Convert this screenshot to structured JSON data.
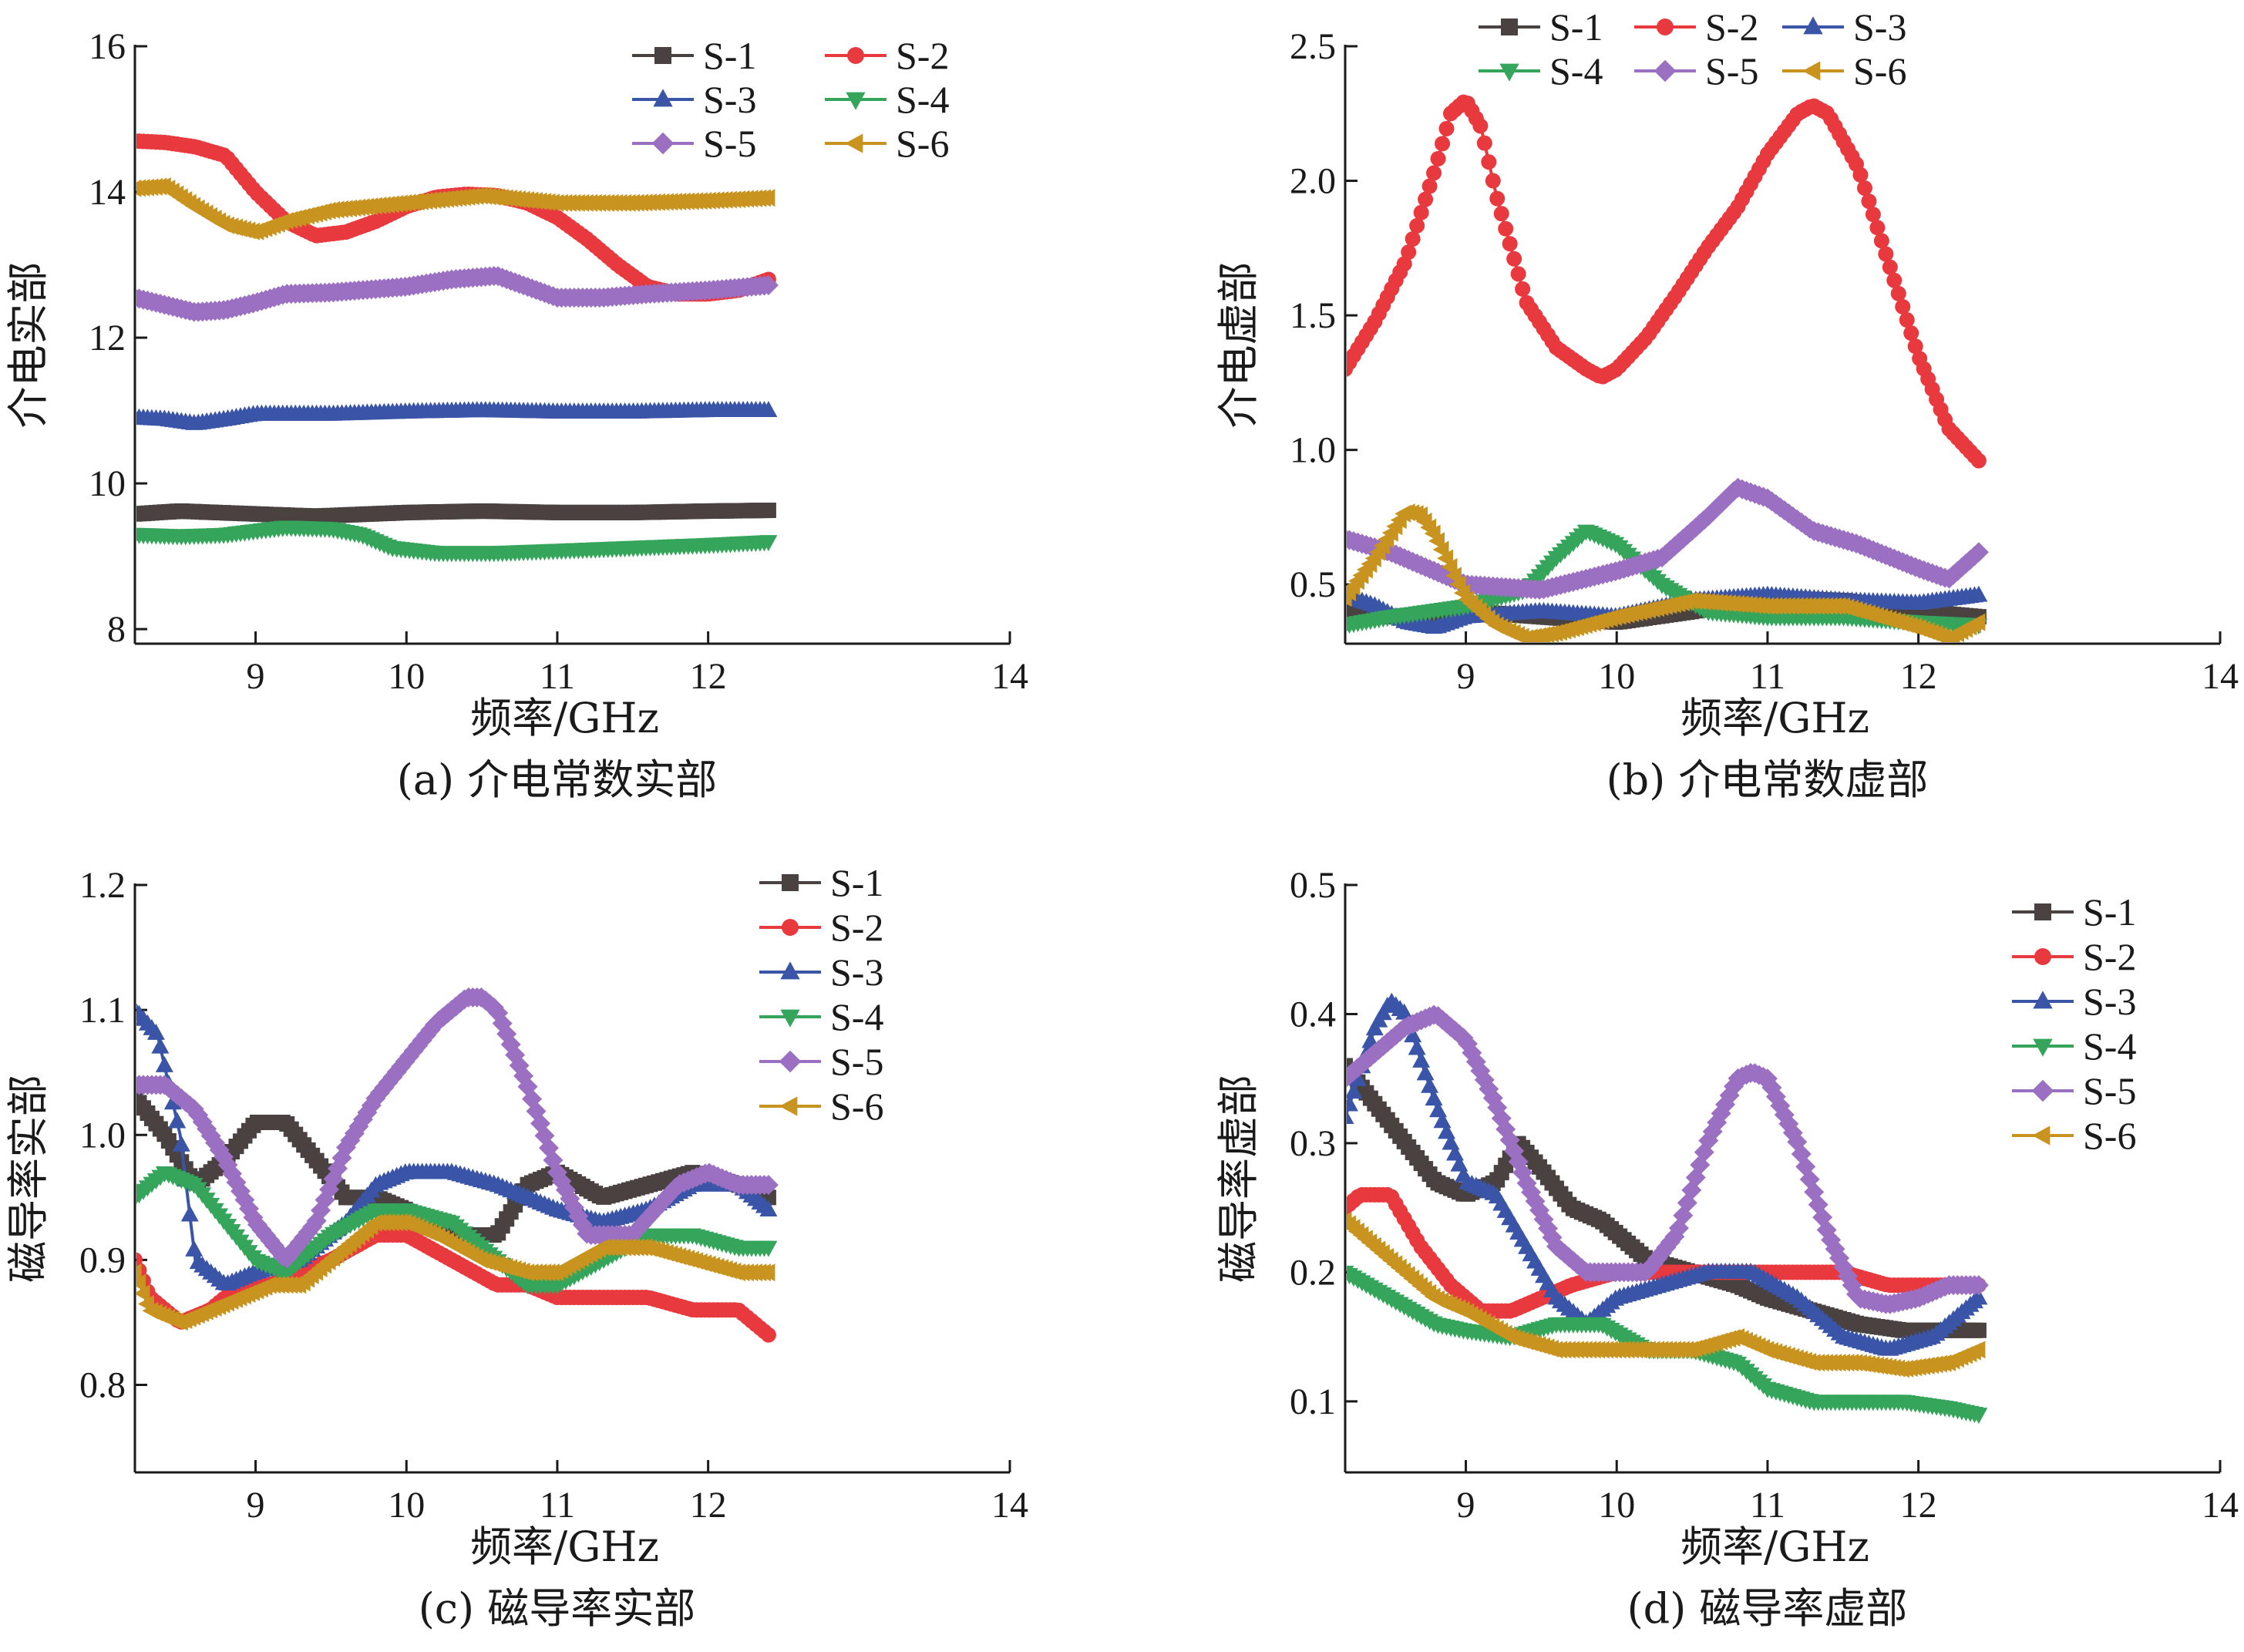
{
  "colors": {
    "S-1": "#4a4141",
    "S-2": "#e8393f",
    "S-3": "#3a55a8",
    "S-4": "#34a55a",
    "S-5": "#9b6fc2",
    "S-6": "#c8941f"
  },
  "markers": {
    "S-1": "square",
    "S-2": "circle",
    "S-3": "triangle-up",
    "S-4": "triangle-down",
    "S-5": "diamond",
    "S-6": "triangle-left"
  },
  "chart_data": [
    {
      "type": "line",
      "caption": "(a) 介电常数实部",
      "xlabel": "频率/GHz",
      "ylabel": "介电实部",
      "xlim": [
        8.2,
        14
      ],
      "ylim": [
        7.8,
        16
      ],
      "xticks": [
        9,
        10,
        11,
        12,
        14
      ],
      "yticks": [
        8,
        10,
        12,
        14,
        16
      ],
      "ytick_labels": [
        "8",
        "10",
        "12",
        "14",
        "16"
      ],
      "legend": {
        "placement": "top-right",
        "columns": 2
      },
      "series": [
        {
          "name": "S-1",
          "x": [
            8.2,
            8.5,
            9.0,
            9.4,
            10.0,
            10.5,
            11.0,
            11.5,
            12.0,
            12.4
          ],
          "y": [
            9.58,
            9.62,
            9.58,
            9.55,
            9.6,
            9.62,
            9.6,
            9.6,
            9.62,
            9.63
          ]
        },
        {
          "name": "S-2",
          "x": [
            8.2,
            8.4,
            8.6,
            8.8,
            9.0,
            9.2,
            9.4,
            9.6,
            9.8,
            10.0,
            10.2,
            10.4,
            10.6,
            10.8,
            11.0,
            11.2,
            11.4,
            11.6,
            11.8,
            12.0,
            12.2,
            12.4
          ],
          "y": [
            14.7,
            14.68,
            14.62,
            14.5,
            14.0,
            13.6,
            13.4,
            13.45,
            13.6,
            13.8,
            13.93,
            13.97,
            13.95,
            13.85,
            13.65,
            13.35,
            13.0,
            12.7,
            12.6,
            12.6,
            12.65,
            12.8
          ]
        },
        {
          "name": "S-3",
          "x": [
            8.2,
            8.4,
            8.6,
            8.8,
            9.0,
            9.5,
            10.0,
            10.5,
            11.0,
            11.5,
            12.0,
            12.4
          ],
          "y": [
            10.9,
            10.88,
            10.82,
            10.88,
            10.95,
            10.95,
            10.98,
            11.0,
            10.98,
            10.98,
            11.0,
            11.0
          ]
        },
        {
          "name": "S-4",
          "x": [
            8.2,
            8.5,
            8.8,
            9.0,
            9.2,
            9.5,
            9.7,
            9.9,
            10.2,
            10.6,
            11.0,
            11.5,
            12.0,
            12.4
          ],
          "y": [
            9.3,
            9.28,
            9.3,
            9.35,
            9.4,
            9.38,
            9.3,
            9.12,
            9.05,
            9.05,
            9.08,
            9.12,
            9.16,
            9.2
          ]
        },
        {
          "name": "S-5",
          "x": [
            8.2,
            8.4,
            8.6,
            8.8,
            9.0,
            9.2,
            9.5,
            10.0,
            10.3,
            10.6,
            10.8,
            11.0,
            11.3,
            11.6,
            12.0,
            12.4
          ],
          "y": [
            12.55,
            12.45,
            12.35,
            12.38,
            12.48,
            12.6,
            12.62,
            12.7,
            12.8,
            12.85,
            12.7,
            12.55,
            12.55,
            12.6,
            12.65,
            12.72
          ]
        },
        {
          "name": "S-6",
          "x": [
            8.2,
            8.4,
            8.6,
            8.8,
            9.0,
            9.2,
            9.5,
            10.0,
            10.5,
            11.0,
            11.5,
            12.0,
            12.4
          ],
          "y": [
            14.05,
            14.08,
            13.8,
            13.55,
            13.45,
            13.6,
            13.75,
            13.85,
            13.95,
            13.85,
            13.85,
            13.88,
            13.92
          ]
        }
      ]
    },
    {
      "type": "line",
      "caption": "(b) 介电常数虚部",
      "xlabel": "频率/GHz",
      "ylabel": "介电虚部",
      "xlim": [
        8.2,
        14
      ],
      "ylim": [
        0.28,
        2.5
      ],
      "xticks": [
        9,
        10,
        11,
        12,
        14
      ],
      "yticks": [
        0.5,
        1.0,
        1.5,
        2.0,
        2.5
      ],
      "ytick_labels": [
        "0.5",
        "1.0",
        "1.5",
        "2.0",
        "2.5"
      ],
      "legend": {
        "placement": "top",
        "columns": 3
      },
      "series": [
        {
          "name": "S-1",
          "x": [
            8.2,
            8.5,
            9.0,
            9.5,
            10.0,
            10.5,
            11.0,
            11.5,
            12.0,
            12.4
          ],
          "y": [
            0.4,
            0.38,
            0.4,
            0.38,
            0.36,
            0.4,
            0.45,
            0.44,
            0.4,
            0.38
          ]
        },
        {
          "name": "S-2",
          "x": [
            8.2,
            8.4,
            8.6,
            8.8,
            8.9,
            9.0,
            9.1,
            9.2,
            9.4,
            9.6,
            9.8,
            9.9,
            10.0,
            10.2,
            10.4,
            10.6,
            10.8,
            11.0,
            11.2,
            11.3,
            11.4,
            11.6,
            11.8,
            12.0,
            12.2,
            12.4
          ],
          "y": [
            1.3,
            1.48,
            1.7,
            2.05,
            2.25,
            2.3,
            2.2,
            1.95,
            1.55,
            1.38,
            1.3,
            1.27,
            1.3,
            1.42,
            1.58,
            1.75,
            1.9,
            2.1,
            2.25,
            2.28,
            2.25,
            2.05,
            1.7,
            1.35,
            1.08,
            0.96
          ]
        },
        {
          "name": "S-3",
          "x": [
            8.2,
            8.4,
            8.6,
            8.8,
            9.0,
            9.5,
            10.0,
            10.5,
            11.0,
            11.5,
            12.0,
            12.4
          ],
          "y": [
            0.46,
            0.42,
            0.36,
            0.34,
            0.38,
            0.4,
            0.38,
            0.44,
            0.46,
            0.44,
            0.43,
            0.46
          ]
        },
        {
          "name": "S-4",
          "x": [
            8.2,
            8.5,
            9.0,
            9.4,
            9.6,
            9.8,
            10.0,
            10.3,
            10.6,
            11.0,
            11.5,
            12.0,
            12.4
          ],
          "y": [
            0.35,
            0.38,
            0.42,
            0.48,
            0.6,
            0.7,
            0.65,
            0.5,
            0.4,
            0.38,
            0.38,
            0.36,
            0.35
          ]
        },
        {
          "name": "S-5",
          "x": [
            8.2,
            8.5,
            9.0,
            9.5,
            10.0,
            10.3,
            10.6,
            10.8,
            11.0,
            11.3,
            11.6,
            12.0,
            12.2,
            12.4
          ],
          "y": [
            0.67,
            0.62,
            0.5,
            0.48,
            0.55,
            0.6,
            0.75,
            0.86,
            0.82,
            0.7,
            0.65,
            0.56,
            0.52,
            0.62
          ]
        },
        {
          "name": "S-6",
          "x": [
            8.2,
            8.4,
            8.6,
            8.7,
            8.8,
            9.0,
            9.2,
            9.4,
            9.6,
            10.0,
            10.5,
            11.0,
            11.5,
            12.0,
            12.2,
            12.4
          ],
          "y": [
            0.45,
            0.6,
            0.77,
            0.76,
            0.68,
            0.45,
            0.35,
            0.3,
            0.32,
            0.38,
            0.44,
            0.42,
            0.42,
            0.34,
            0.3,
            0.36
          ]
        }
      ]
    },
    {
      "type": "line",
      "caption": "(c) 磁导率实部",
      "xlabel": "频率/GHz",
      "ylabel": "磁导率实部",
      "xlim": [
        8.2,
        14
      ],
      "ylim": [
        0.73,
        1.2
      ],
      "xticks": [
        9,
        10,
        11,
        12,
        14
      ],
      "yticks": [
        0.8,
        0.9,
        1.0,
        1.1,
        1.2
      ],
      "ytick_labels": [
        "0.8",
        "0.9",
        "1.0",
        "1.1",
        "1.2"
      ],
      "legend": {
        "placement": "top-right",
        "columns": 1
      },
      "series": [
        {
          "name": "S-1",
          "x": [
            8.2,
            8.4,
            8.6,
            8.8,
            9.0,
            9.2,
            9.4,
            9.6,
            9.8,
            10.0,
            10.3,
            10.6,
            10.8,
            11.0,
            11.3,
            11.6,
            11.9,
            12.2,
            12.4
          ],
          "y": [
            1.03,
            1.0,
            0.96,
            0.98,
            1.01,
            1.01,
            0.98,
            0.95,
            0.95,
            0.94,
            0.92,
            0.92,
            0.96,
            0.97,
            0.95,
            0.96,
            0.97,
            0.96,
            0.95
          ]
        },
        {
          "name": "S-2",
          "x": [
            8.2,
            8.3,
            8.5,
            8.7,
            8.9,
            9.1,
            9.3,
            9.5,
            9.8,
            10.0,
            10.3,
            10.6,
            10.8,
            11.0,
            11.3,
            11.6,
            11.9,
            12.2,
            12.4
          ],
          "y": [
            0.9,
            0.87,
            0.85,
            0.86,
            0.88,
            0.88,
            0.89,
            0.9,
            0.92,
            0.92,
            0.9,
            0.88,
            0.88,
            0.87,
            0.87,
            0.87,
            0.86,
            0.86,
            0.84
          ]
        },
        {
          "name": "S-3",
          "x": [
            8.2,
            8.35,
            8.5,
            8.6,
            8.8,
            9.0,
            9.3,
            9.6,
            9.8,
            10.0,
            10.3,
            10.6,
            10.8,
            11.0,
            11.3,
            11.6,
            11.9,
            12.2,
            12.4
          ],
          "y": [
            1.1,
            1.08,
            1.0,
            0.9,
            0.88,
            0.89,
            0.9,
            0.93,
            0.96,
            0.97,
            0.97,
            0.96,
            0.95,
            0.94,
            0.93,
            0.94,
            0.96,
            0.96,
            0.94
          ]
        },
        {
          "name": "S-4",
          "x": [
            8.2,
            8.4,
            8.6,
            8.8,
            9.0,
            9.2,
            9.5,
            9.8,
            10.0,
            10.3,
            10.6,
            10.8,
            11.0,
            11.3,
            11.6,
            11.9,
            12.2,
            12.4
          ],
          "y": [
            0.95,
            0.97,
            0.96,
            0.93,
            0.9,
            0.89,
            0.92,
            0.94,
            0.94,
            0.93,
            0.9,
            0.88,
            0.88,
            0.9,
            0.92,
            0.92,
            0.91,
            0.91
          ]
        },
        {
          "name": "S-5",
          "x": [
            8.2,
            8.4,
            8.6,
            8.8,
            9.0,
            9.2,
            9.4,
            9.6,
            9.8,
            10.0,
            10.2,
            10.4,
            10.5,
            10.6,
            10.8,
            11.0,
            11.2,
            11.5,
            11.8,
            12.0,
            12.2,
            12.4
          ],
          "y": [
            1.04,
            1.04,
            1.02,
            0.98,
            0.93,
            0.9,
            0.93,
            0.99,
            1.03,
            1.06,
            1.09,
            1.11,
            1.11,
            1.1,
            1.04,
            0.97,
            0.92,
            0.92,
            0.96,
            0.97,
            0.96,
            0.96
          ]
        },
        {
          "name": "S-6",
          "x": [
            8.2,
            8.3,
            8.5,
            8.7,
            8.9,
            9.1,
            9.3,
            9.5,
            9.8,
            10.0,
            10.2,
            10.5,
            10.8,
            11.0,
            11.3,
            11.6,
            11.9,
            12.2,
            12.4
          ],
          "y": [
            0.89,
            0.86,
            0.85,
            0.86,
            0.87,
            0.88,
            0.88,
            0.9,
            0.93,
            0.93,
            0.92,
            0.9,
            0.89,
            0.89,
            0.91,
            0.91,
            0.9,
            0.89,
            0.89
          ]
        }
      ]
    },
    {
      "type": "line",
      "caption": "(d) 磁导率虚部",
      "xlabel": "频率/GHz",
      "ylabel": "磁导率虚部",
      "xlim": [
        8.2,
        14
      ],
      "ylim": [
        0.045,
        0.5
      ],
      "xticks": [
        9,
        10,
        11,
        12,
        14
      ],
      "yticks": [
        0.1,
        0.2,
        0.3,
        0.4,
        0.5
      ],
      "ytick_labels": [
        "0.1",
        "0.2",
        "0.3",
        "0.4",
        "0.5"
      ],
      "legend": {
        "placement": "top-right",
        "columns": 1
      },
      "series": [
        {
          "name": "S-1",
          "x": [
            8.2,
            8.4,
            8.6,
            8.8,
            9.0,
            9.2,
            9.35,
            9.5,
            9.7,
            9.9,
            10.2,
            10.5,
            10.8,
            11.0,
            11.3,
            11.6,
            11.9,
            12.2,
            12.4
          ],
          "y": [
            0.36,
            0.33,
            0.3,
            0.27,
            0.26,
            0.27,
            0.3,
            0.28,
            0.25,
            0.24,
            0.21,
            0.2,
            0.19,
            0.18,
            0.17,
            0.16,
            0.155,
            0.155,
            0.155
          ]
        },
        {
          "name": "S-2",
          "x": [
            8.2,
            8.3,
            8.5,
            8.7,
            8.9,
            9.1,
            9.3,
            9.5,
            9.7,
            10.0,
            10.3,
            10.6,
            10.9,
            11.2,
            11.5,
            11.8,
            12.1,
            12.4
          ],
          "y": [
            0.25,
            0.26,
            0.26,
            0.22,
            0.19,
            0.17,
            0.17,
            0.18,
            0.19,
            0.2,
            0.2,
            0.2,
            0.2,
            0.2,
            0.2,
            0.19,
            0.19,
            0.19
          ]
        },
        {
          "name": "S-3",
          "x": [
            8.2,
            8.4,
            8.5,
            8.6,
            8.8,
            9.0,
            9.2,
            9.4,
            9.6,
            9.8,
            10.0,
            10.3,
            10.6,
            10.9,
            11.2,
            11.5,
            11.8,
            12.1,
            12.4
          ],
          "y": [
            0.32,
            0.39,
            0.41,
            0.4,
            0.33,
            0.27,
            0.26,
            0.22,
            0.18,
            0.16,
            0.18,
            0.19,
            0.2,
            0.2,
            0.18,
            0.15,
            0.14,
            0.15,
            0.18
          ]
        },
        {
          "name": "S-4",
          "x": [
            8.2,
            8.5,
            8.8,
            9.0,
            9.3,
            9.6,
            9.9,
            10.2,
            10.5,
            10.8,
            11.0,
            11.3,
            11.6,
            11.9,
            12.2,
            12.4
          ],
          "y": [
            0.2,
            0.18,
            0.16,
            0.155,
            0.15,
            0.16,
            0.16,
            0.14,
            0.14,
            0.13,
            0.11,
            0.1,
            0.1,
            0.1,
            0.095,
            0.09
          ]
        },
        {
          "name": "S-5",
          "x": [
            8.2,
            8.4,
            8.6,
            8.8,
            9.0,
            9.2,
            9.4,
            9.6,
            9.8,
            10.0,
            10.2,
            10.4,
            10.6,
            10.8,
            10.9,
            11.0,
            11.2,
            11.4,
            11.6,
            11.8,
            12.0,
            12.2,
            12.4
          ],
          "y": [
            0.35,
            0.37,
            0.39,
            0.4,
            0.38,
            0.33,
            0.27,
            0.22,
            0.2,
            0.2,
            0.2,
            0.23,
            0.3,
            0.35,
            0.355,
            0.35,
            0.3,
            0.23,
            0.18,
            0.175,
            0.18,
            0.19,
            0.19
          ]
        },
        {
          "name": "S-6",
          "x": [
            8.2,
            8.4,
            8.6,
            8.8,
            9.0,
            9.3,
            9.6,
            9.9,
            10.2,
            10.5,
            10.8,
            11.0,
            11.3,
            11.6,
            11.9,
            12.2,
            12.4
          ],
          "y": [
            0.24,
            0.22,
            0.2,
            0.18,
            0.17,
            0.15,
            0.14,
            0.14,
            0.14,
            0.14,
            0.15,
            0.14,
            0.13,
            0.13,
            0.125,
            0.13,
            0.14
          ]
        }
      ]
    }
  ]
}
